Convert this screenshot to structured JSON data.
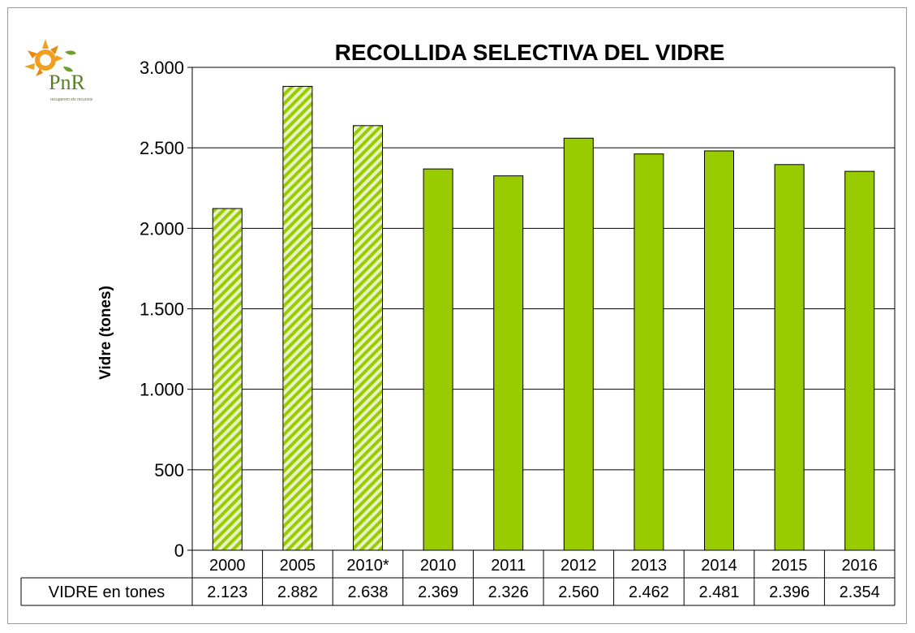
{
  "logo": {
    "text": "PnR",
    "subtitle": "recuperem els recursos"
  },
  "chart_data": {
    "type": "bar",
    "title": "RECOLLIDA SELECTIVA DEL VIDRE",
    "xlabel": "",
    "ylabel": "Vidre (tones)",
    "ylim": [
      0,
      3000
    ],
    "yticks": [
      0,
      500,
      1000,
      1500,
      2000,
      2500,
      3000
    ],
    "ytick_labels": [
      "0",
      "500",
      "1.000",
      "1.500",
      "2.000",
      "2.500",
      "3.000"
    ],
    "grid": true,
    "categories": [
      "2000",
      "2005",
      "2010*",
      "2010",
      "2011",
      "2012",
      "2013",
      "2014",
      "2015",
      "2016"
    ],
    "series": [
      {
        "name": "VIDRE en tones",
        "values": [
          2123,
          2882,
          2638,
          2369,
          2326,
          2560,
          2462,
          2481,
          2396,
          2354
        ],
        "value_labels": [
          "2.123",
          "2.882",
          "2.638",
          "2.369",
          "2.326",
          "2.560",
          "2.462",
          "2.481",
          "2.396",
          "2.354"
        ],
        "fill_styles": [
          "hatched",
          "hatched",
          "hatched",
          "solid",
          "solid",
          "solid",
          "solid",
          "solid",
          "solid",
          "solid"
        ]
      }
    ],
    "colors": {
      "bar": "#99cc00",
      "hatch_light": "#e8f2c4",
      "grid": "#000000"
    }
  }
}
